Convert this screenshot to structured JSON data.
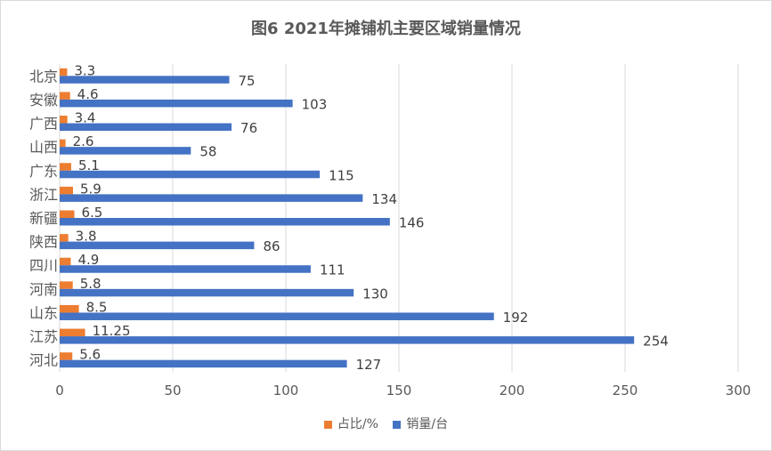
{
  "chart_data": {
    "type": "bar",
    "orientation": "horizontal",
    "title": "图6  2021年摊铺机主要区域销量情况",
    "categories": [
      "北京",
      "安徽",
      "广西",
      "山西",
      "广东",
      "浙江",
      "新疆",
      "陕西",
      "四川",
      "河南",
      "山东",
      "江苏",
      "河北"
    ],
    "series": [
      {
        "name": "占比/%",
        "color": "#ed7d31",
        "values": [
          3.3,
          4.6,
          3.4,
          2.6,
          5.1,
          5.9,
          6.5,
          3.8,
          4.9,
          5.8,
          8.5,
          11.25,
          5.6
        ],
        "labels": [
          "3.3",
          "4.6",
          "3.4",
          "2.6",
          "5.1",
          "5.9",
          "6.5",
          "3.8",
          "4.9",
          "5.8",
          "8.5",
          "11.25",
          "5.6"
        ]
      },
      {
        "name": "销量/台",
        "color": "#4472c4",
        "values": [
          75,
          103,
          76,
          58,
          115,
          134,
          146,
          86,
          111,
          130,
          192,
          254,
          127
        ],
        "labels": [
          "75",
          "103",
          "76",
          "58",
          "115",
          "134",
          "146",
          "86",
          "111",
          "130",
          "192",
          "254",
          "127"
        ]
      }
    ],
    "xlim": [
      0,
      300
    ],
    "xticks": [
      0,
      50,
      100,
      150,
      200,
      250,
      300
    ],
    "grid": true,
    "legend_position": "bottom"
  }
}
